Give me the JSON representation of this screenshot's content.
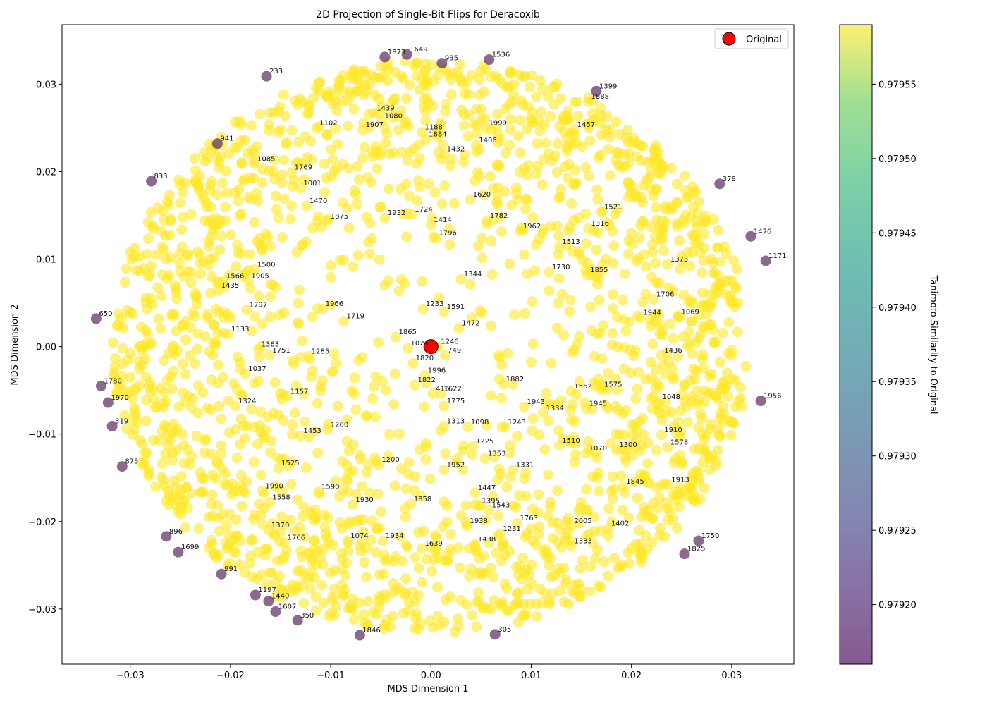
{
  "chart_data": {
    "type": "scatter",
    "title": "2D Projection of Single-Bit Flips for Deracoxib",
    "xlabel": "MDS Dimension 1",
    "ylabel": "MDS Dimension 2",
    "xlim": [
      -0.0368,
      0.0362
    ],
    "ylim": [
      -0.0363,
      0.0368
    ],
    "xticks": [
      -0.03,
      -0.02,
      -0.01,
      0.0,
      0.01,
      0.02,
      0.03
    ],
    "xtick_labels": [
      "−0.03",
      "−0.02",
      "−0.01",
      "0.00",
      "0.01",
      "0.02",
      "0.03"
    ],
    "yticks": [
      -0.03,
      -0.02,
      -0.01,
      0.0,
      0.01,
      0.02,
      0.03
    ],
    "ytick_labels": [
      "−0.03",
      "−0.02",
      "−0.01",
      "0.00",
      "0.01",
      "0.02",
      "0.03"
    ],
    "grid": false,
    "legend": {
      "position": "top-right",
      "entries": [
        "Original"
      ]
    },
    "colorbar": {
      "label": "Tanimoto Similarity to Original",
      "colormap": "viridis",
      "min": 0.97916,
      "max": 0.97959,
      "ticks": [
        0.9792,
        0.97925,
        0.9793,
        0.97935,
        0.9794,
        0.97945,
        0.9795,
        0.97955
      ],
      "tick_labels": [
        "0.97920",
        "0.97925",
        "0.97930",
        "0.97935",
        "0.97940",
        "0.97945",
        "0.97950",
        "0.97955"
      ]
    },
    "original_point": {
      "name": "Original",
      "x": 0.0,
      "y": 0.0,
      "color": "#ff0000"
    },
    "point_count": 2048,
    "marker_color": "#fde725",
    "marker_alpha": 0.6,
    "labeled_points": [
      {
        "label": "1873",
        "x": -0.0046,
        "y": 0.0331,
        "low": true
      },
      {
        "label": "1649",
        "x": -0.0024,
        "y": 0.0334,
        "low": true
      },
      {
        "label": "935",
        "x": 0.0011,
        "y": 0.0324,
        "low": true
      },
      {
        "label": "1536",
        "x": 0.0058,
        "y": 0.0328,
        "low": true
      },
      {
        "label": "233",
        "x": -0.0164,
        "y": 0.0309,
        "low": true
      },
      {
        "label": "1399",
        "x": 0.0165,
        "y": 0.0292,
        "low": true
      },
      {
        "label": "941",
        "x": -0.0213,
        "y": 0.0232,
        "low": true
      },
      {
        "label": "833",
        "x": -0.0279,
        "y": 0.0189,
        "low": true
      },
      {
        "label": "378",
        "x": 0.0288,
        "y": 0.0186,
        "low": true
      },
      {
        "label": "1476",
        "x": 0.0319,
        "y": 0.0126,
        "low": true
      },
      {
        "label": "1171",
        "x": 0.0334,
        "y": 0.0098,
        "low": true
      },
      {
        "label": "650",
        "x": -0.0334,
        "y": 0.0032,
        "low": true
      },
      {
        "label": "1956",
        "x": 0.0329,
        "y": -0.0062,
        "low": true
      },
      {
        "label": "1780",
        "x": -0.0329,
        "y": -0.0045,
        "low": true
      },
      {
        "label": "1970",
        "x": -0.0322,
        "y": -0.0064,
        "low": true
      },
      {
        "label": "319",
        "x": -0.0318,
        "y": -0.0091,
        "low": true
      },
      {
        "label": "875",
        "x": -0.0308,
        "y": -0.0137,
        "low": true
      },
      {
        "label": "896",
        "x": -0.0264,
        "y": -0.0217,
        "low": true
      },
      {
        "label": "1699",
        "x": -0.0252,
        "y": -0.0235,
        "low": true
      },
      {
        "label": "1750",
        "x": 0.0267,
        "y": -0.0222,
        "low": true
      },
      {
        "label": "1825",
        "x": 0.0253,
        "y": -0.0237,
        "low": true
      },
      {
        "label": "991",
        "x": -0.0209,
        "y": -0.026,
        "low": true
      },
      {
        "label": "1197",
        "x": -0.0175,
        "y": -0.0284,
        "low": true
      },
      {
        "label": "1440",
        "x": -0.0162,
        "y": -0.0291,
        "low": true
      },
      {
        "label": "1607",
        "x": -0.0155,
        "y": -0.0303,
        "low": true
      },
      {
        "label": "350",
        "x": -0.0133,
        "y": -0.0313,
        "low": true
      },
      {
        "label": "1846",
        "x": -0.0071,
        "y": -0.033,
        "low": true
      },
      {
        "label": "305",
        "x": 0.0064,
        "y": -0.0329,
        "low": true
      },
      {
        "label": "1246",
        "x": 0.0007,
        "y": 0.0,
        "low": false
      },
      {
        "label": "1472",
        "x": 0.0028,
        "y": 0.0021,
        "low": false
      },
      {
        "label": "1865",
        "x": -0.0035,
        "y": 0.0011,
        "low": false
      },
      {
        "label": "1024",
        "x": -0.0023,
        "y": -0.0002,
        "low": false
      },
      {
        "label": "749",
        "x": 0.0014,
        "y": -0.001,
        "low": false
      },
      {
        "label": "1820",
        "x": -0.0018,
        "y": -0.0019,
        "low": false
      },
      {
        "label": "1996",
        "x": -0.0006,
        "y": -0.0033,
        "low": false
      },
      {
        "label": "1822",
        "x": -0.0016,
        "y": -0.0044,
        "low": false
      },
      {
        "label": "416",
        "x": 0.0002,
        "y": -0.0054,
        "low": false
      },
      {
        "label": "1313",
        "x": 0.0013,
        "y": -0.0091,
        "low": false
      },
      {
        "label": "1200",
        "x": -0.0052,
        "y": -0.0135,
        "low": false
      },
      {
        "label": "1952",
        "x": 0.0013,
        "y": -0.0141,
        "low": false
      },
      {
        "label": "1938",
        "x": 0.0036,
        "y": -0.0205,
        "low": false
      },
      {
        "label": "1432",
        "x": 0.0013,
        "y": 0.022,
        "low": false
      },
      {
        "label": "1796",
        "x": 0.0005,
        "y": 0.0124,
        "low": false
      },
      {
        "label": "1344",
        "x": 0.003,
        "y": 0.0077,
        "low": false
      },
      {
        "label": "1233",
        "x": -0.0008,
        "y": 0.0043,
        "low": false
      },
      {
        "label": "1591",
        "x": 0.0013,
        "y": 0.004,
        "low": false
      },
      {
        "label": "1719",
        "x": -0.0087,
        "y": 0.0029,
        "low": false
      },
      {
        "label": "1763",
        "x": 0.0086,
        "y": -0.0202,
        "low": false
      },
      {
        "label": "1543",
        "x": 0.0058,
        "y": -0.0187,
        "low": false
      },
      {
        "label": "1882",
        "x": 0.0072,
        "y": -0.0043,
        "low": false
      },
      {
        "label": "1943",
        "x": 0.0093,
        "y": -0.0069,
        "low": false
      },
      {
        "label": "1334",
        "x": 0.0112,
        "y": -0.0076,
        "low": false
      },
      {
        "label": "1331",
        "x": 0.0082,
        "y": -0.0141,
        "low": false
      },
      {
        "label": "1562",
        "x": 0.014,
        "y": -0.0051,
        "low": false
      },
      {
        "label": "1575",
        "x": 0.017,
        "y": -0.0049,
        "low": false
      },
      {
        "label": "1945",
        "x": 0.0155,
        "y": -0.0071,
        "low": false
      },
      {
        "label": "1510",
        "x": 0.0128,
        "y": -0.0113,
        "low": false
      },
      {
        "label": "1070",
        "x": 0.0155,
        "y": -0.0122,
        "low": false
      },
      {
        "label": "1300",
        "x": 0.0185,
        "y": -0.0118,
        "low": false
      },
      {
        "label": "1845",
        "x": 0.0192,
        "y": -0.016,
        "low": false
      },
      {
        "label": "1907",
        "x": -0.0068,
        "y": 0.0248,
        "low": false
      },
      {
        "label": "1932",
        "x": -0.0046,
        "y": 0.0147,
        "low": false
      },
      {
        "label": "1724",
        "x": -0.0019,
        "y": 0.0151,
        "low": false
      },
      {
        "label": "1414",
        "x": 0.0,
        "y": 0.0139,
        "low": false
      },
      {
        "label": "1620",
        "x": 0.0039,
        "y": 0.0168,
        "low": false
      },
      {
        "label": "1782",
        "x": 0.0056,
        "y": 0.0144,
        "low": false
      },
      {
        "label": "1962",
        "x": 0.0089,
        "y": 0.0132,
        "low": false
      },
      {
        "label": "1730",
        "x": 0.0118,
        "y": 0.0085,
        "low": false
      },
      {
        "label": "1855",
        "x": 0.0156,
        "y": 0.0082,
        "low": false
      },
      {
        "label": "1944",
        "x": 0.0209,
        "y": 0.0033,
        "low": false
      },
      {
        "label": "1435",
        "x": -0.0212,
        "y": 0.0064,
        "low": false
      },
      {
        "label": "1966",
        "x": -0.0108,
        "y": 0.0043,
        "low": false
      },
      {
        "label": "1285",
        "x": -0.0122,
        "y": -0.0011,
        "low": false
      },
      {
        "label": "1751",
        "x": -0.0161,
        "y": -0.001,
        "low": false
      },
      {
        "label": "1157",
        "x": -0.0143,
        "y": -0.0057,
        "low": false
      },
      {
        "label": "1260",
        "x": -0.0103,
        "y": -0.0095,
        "low": false
      },
      {
        "label": "1590",
        "x": -0.0112,
        "y": -0.0166,
        "low": false
      },
      {
        "label": "1990",
        "x": -0.0168,
        "y": -0.0165,
        "low": false
      },
      {
        "label": "1370",
        "x": -0.0162,
        "y": -0.021,
        "low": false
      },
      {
        "label": "1766",
        "x": -0.0146,
        "y": -0.0224,
        "low": false
      },
      {
        "label": "1074",
        "x": -0.0083,
        "y": -0.0222,
        "low": false
      },
      {
        "label": "1934",
        "x": -0.0048,
        "y": -0.0222,
        "low": false
      },
      {
        "label": "1639",
        "x": -0.0009,
        "y": -0.0231,
        "low": false
      },
      {
        "label": "1438",
        "x": 0.0044,
        "y": -0.0226,
        "low": false
      },
      {
        "label": "1231",
        "x": 0.0069,
        "y": -0.0214,
        "low": false
      },
      {
        "label": "2005",
        "x": 0.014,
        "y": -0.0205,
        "low": false
      },
      {
        "label": "1402",
        "x": 0.0177,
        "y": -0.0208,
        "low": false
      },
      {
        "label": "1888",
        "x": 0.0157,
        "y": 0.028,
        "low": false
      },
      {
        "label": "1457",
        "x": 0.0143,
        "y": 0.0248,
        "low": false
      },
      {
        "label": "1521",
        "x": 0.017,
        "y": 0.0154,
        "low": false
      },
      {
        "label": "1316",
        "x": 0.0157,
        "y": 0.0135,
        "low": false
      },
      {
        "label": "1513",
        "x": 0.0128,
        "y": 0.0114,
        "low": false
      },
      {
        "label": "1373",
        "x": 0.0236,
        "y": 0.0094,
        "low": false
      },
      {
        "label": "1706",
        "x": 0.0222,
        "y": 0.0054,
        "low": false
      },
      {
        "label": "1069",
        "x": 0.0247,
        "y": 0.0034,
        "low": false
      },
      {
        "label": "1436",
        "x": 0.023,
        "y": -0.001,
        "low": false
      },
      {
        "label": "1048",
        "x": 0.0228,
        "y": -0.0063,
        "low": false
      },
      {
        "label": "1910",
        "x": 0.023,
        "y": -0.0101,
        "low": false
      },
      {
        "label": "1578",
        "x": 0.0236,
        "y": -0.0115,
        "low": false
      },
      {
        "label": "1913",
        "x": 0.0237,
        "y": -0.0158,
        "low": false
      },
      {
        "label": "1333",
        "x": 0.014,
        "y": -0.0228,
        "low": false
      },
      {
        "label": "1102",
        "x": -0.0114,
        "y": 0.025,
        "low": false
      },
      {
        "label": "1439",
        "x": -0.0057,
        "y": 0.0267,
        "low": false
      },
      {
        "label": "1080",
        "x": -0.0049,
        "y": 0.0258,
        "low": false
      },
      {
        "label": "1188",
        "x": -0.0009,
        "y": 0.0245,
        "low": false
      },
      {
        "label": "1884",
        "x": -0.0005,
        "y": 0.0237,
        "low": false
      },
      {
        "label": "1406",
        "x": 0.0045,
        "y": 0.023,
        "low": false
      },
      {
        "label": "1999",
        "x": 0.0055,
        "y": 0.025,
        "low": false
      },
      {
        "label": "1085",
        "x": -0.0176,
        "y": 0.0209,
        "low": false
      },
      {
        "label": "1769",
        "x": -0.0139,
        "y": 0.0199,
        "low": false
      },
      {
        "label": "1001",
        "x": -0.013,
        "y": 0.0181,
        "low": false
      },
      {
        "label": "1470",
        "x": -0.0124,
        "y": 0.0161,
        "low": false
      },
      {
        "label": "1875",
        "x": -0.0103,
        "y": 0.0143,
        "low": false
      },
      {
        "label": "1500",
        "x": -0.0176,
        "y": 0.0088,
        "low": false
      },
      {
        "label": "1566",
        "x": -0.0207,
        "y": 0.0075,
        "low": false
      },
      {
        "label": "1905",
        "x": -0.0182,
        "y": 0.0075,
        "low": false
      },
      {
        "label": "1797",
        "x": -0.0184,
        "y": 0.0042,
        "low": false
      },
      {
        "label": "1133",
        "x": -0.0202,
        "y": 0.0014,
        "low": false
      },
      {
        "label": "1363",
        "x": -0.0172,
        "y": -0.0003,
        "low": false
      },
      {
        "label": "1037",
        "x": -0.0185,
        "y": -0.0031,
        "low": false
      },
      {
        "label": "1324",
        "x": -0.0195,
        "y": -0.0068,
        "low": false
      },
      {
        "label": "1453",
        "x": -0.013,
        "y": -0.0102,
        "low": false
      },
      {
        "label": "1525",
        "x": -0.0152,
        "y": -0.0139,
        "low": false
      },
      {
        "label": "1558",
        "x": -0.0161,
        "y": -0.0178,
        "low": false
      },
      {
        "label": "1930",
        "x": -0.0078,
        "y": -0.0181,
        "low": false
      },
      {
        "label": "1858",
        "x": -0.002,
        "y": -0.018,
        "low": false
      },
      {
        "label": "1775",
        "x": 0.0013,
        "y": -0.0068,
        "low": false
      },
      {
        "label": "1622",
        "x": 0.001,
        "y": -0.0054,
        "low": false
      },
      {
        "label": "1098",
        "x": 0.0037,
        "y": -0.0092,
        "low": false
      },
      {
        "label": "1243",
        "x": 0.0074,
        "y": -0.0092,
        "low": false
      },
      {
        "label": "1225",
        "x": 0.0042,
        "y": -0.0114,
        "low": false
      },
      {
        "label": "1353",
        "x": 0.0054,
        "y": -0.0128,
        "low": false
      },
      {
        "label": "1447",
        "x": 0.0044,
        "y": -0.0167,
        "low": false
      },
      {
        "label": "1395",
        "x": 0.0048,
        "y": -0.0182,
        "low": false
      }
    ]
  }
}
